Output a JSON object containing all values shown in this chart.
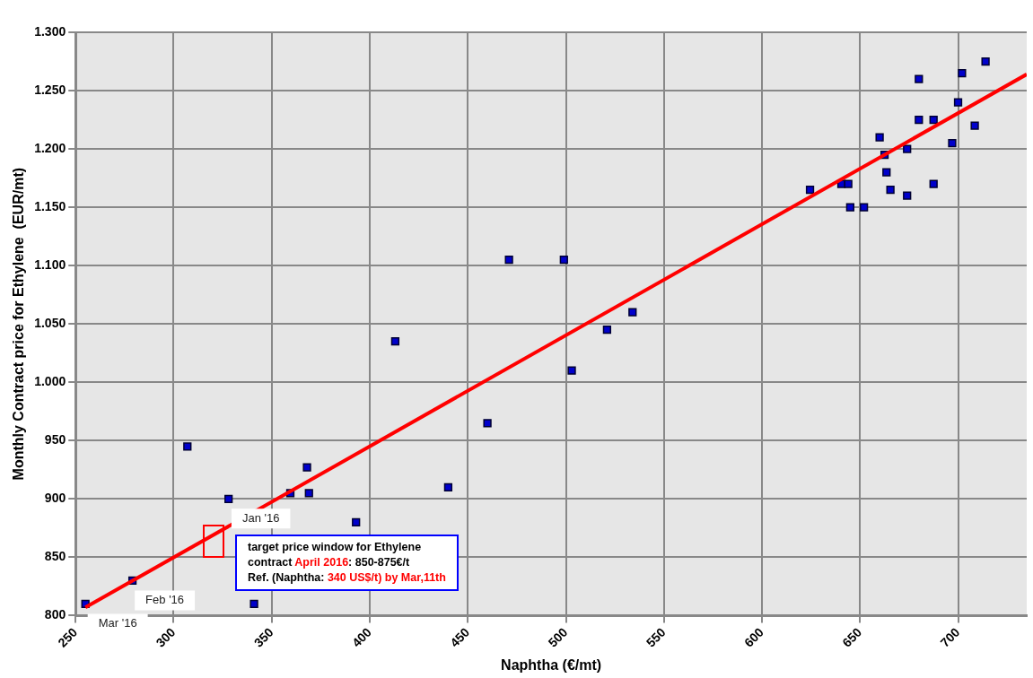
{
  "chart_data": {
    "type": "scatter",
    "xlabel": "Naphtha (€/mt)",
    "ylabel": "Monthly Contract price for Ethylene  (EUR/mt)",
    "x": [
      255,
      279,
      307,
      341,
      328,
      359.5,
      368,
      369,
      393,
      413,
      440,
      471,
      499,
      503,
      460,
      521,
      534,
      624.5,
      640.5,
      644,
      645,
      652,
      660,
      662.5,
      663.5,
      665.5,
      674,
      674,
      680,
      702,
      714,
      700,
      680,
      687.5,
      708.5,
      697,
      687.5
    ],
    "series": [
      {
        "marker": "square",
        "color": "#0000cc",
        "values": [
          810,
          830,
          945,
          810,
          900,
          905,
          927,
          905,
          880,
          1035,
          910,
          1105,
          1105,
          1010,
          965,
          1045,
          1060,
          1165,
          1170,
          1170,
          1150,
          1150,
          1210,
          1195,
          1180,
          1165,
          1200,
          1160,
          1260,
          1265,
          1275,
          1240,
          1225,
          1225,
          1220,
          1205,
          1170
        ]
      },
      {
        "type": "line",
        "marker": "none",
        "color": "#ff0000",
        "x": [
          255,
          735
        ],
        "values": [
          807,
          1264
        ]
      }
    ],
    "grid": true,
    "legend": false,
    "xlim": [
      250,
      735
    ],
    "xticks": [
      250,
      300,
      350,
      400,
      450,
      500,
      550,
      600,
      650,
      700
    ],
    "ylim": [
      800,
      1300
    ],
    "yticks": [
      800,
      850,
      900,
      950,
      {
        "value": 1000,
        "label": "1.000"
      },
      {
        "value": 1050,
        "label": "1.050"
      },
      {
        "value": 1100,
        "label": "1.100"
      },
      {
        "value": 1150,
        "label": "1.150"
      },
      {
        "value": 1200,
        "label": "1.200"
      },
      {
        "value": 1250,
        "label": "1.250"
      },
      {
        "value": 1300,
        "label": "1.300"
      }
    ],
    "annotations": [
      {
        "text": "Mar '16",
        "x": 255,
        "y": 810
      },
      {
        "text": "Feb '16",
        "x": 279,
        "y": 830
      },
      {
        "text": "Jan '16",
        "x": 328,
        "y": 900
      },
      "target price window for Ethylene",
      "contract ",
      "April 2016",
      ":  850-875€/t",
      "Ref. (Naphtha: ",
      "340 US$/t) by Mar,11th"
    ]
  }
}
